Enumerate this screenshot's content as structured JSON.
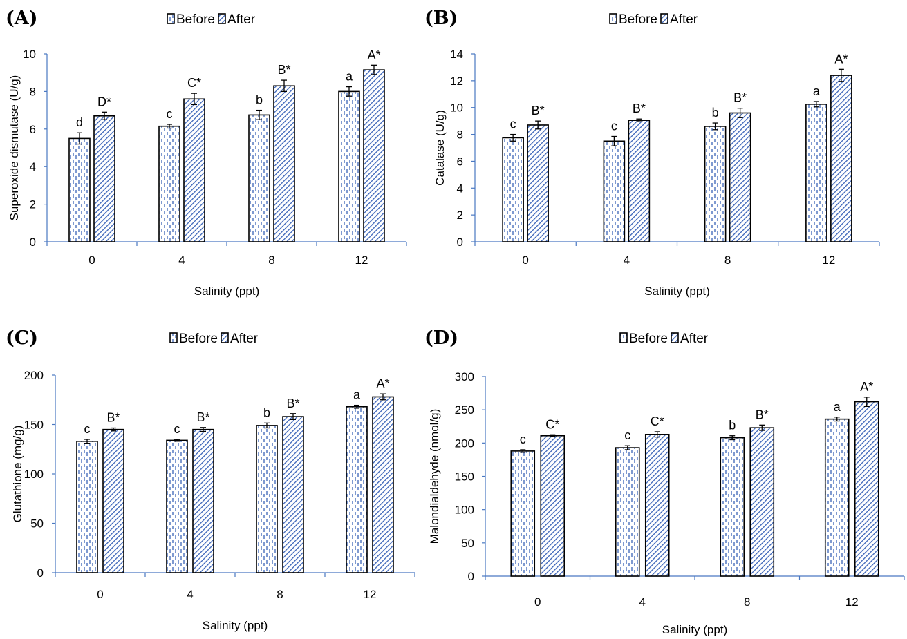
{
  "legend": {
    "before_label": "Before",
    "after_label": "After"
  },
  "colors": {
    "axis": "#4a78c2",
    "pattern": "#3a63b8",
    "outline": "#000000"
  },
  "chart_data": [
    {
      "panel": "(A)",
      "type": "bar",
      "categories": [
        "0",
        "4",
        "8",
        "12"
      ],
      "xlabel": "Salinity (ppt)",
      "ylabel": "Superoxide dismutase  (U/g)",
      "ylim": [
        0,
        10
      ],
      "yticks": [
        0,
        2,
        4,
        6,
        8,
        10
      ],
      "series": [
        {
          "name": "Before",
          "values": [
            5.5,
            6.15,
            6.75,
            8.0
          ],
          "errors": [
            0.3,
            0.1,
            0.25,
            0.25
          ],
          "labels": [
            "d",
            "c",
            "b",
            "a"
          ]
        },
        {
          "name": "After",
          "values": [
            6.7,
            7.6,
            8.3,
            9.15
          ],
          "errors": [
            0.2,
            0.3,
            0.3,
            0.25
          ],
          "labels": [
            "D*",
            "C*",
            "B*",
            "A*"
          ]
        }
      ]
    },
    {
      "panel": "(B)",
      "type": "bar",
      "categories": [
        "0",
        "4",
        "8",
        "12"
      ],
      "xlabel": "Salinity (ppt)",
      "ylabel": "Catalase  (U/g)",
      "ylim": [
        0,
        14
      ],
      "yticks": [
        0,
        2,
        4,
        6,
        8,
        10,
        12,
        14
      ],
      "series": [
        {
          "name": "Before",
          "values": [
            7.75,
            7.5,
            8.6,
            10.25
          ],
          "errors": [
            0.25,
            0.35,
            0.25,
            0.2
          ],
          "labels": [
            "c",
            "c",
            "b",
            "a"
          ]
        },
        {
          "name": "After",
          "values": [
            8.7,
            9.05,
            9.6,
            12.4
          ],
          "errors": [
            0.3,
            0.1,
            0.35,
            0.45
          ],
          "labels": [
            "B*",
            "B*",
            "B*",
            "A*"
          ]
        }
      ]
    },
    {
      "panel": "(C)",
      "type": "bar",
      "categories": [
        "0",
        "4",
        "8",
        "12"
      ],
      "xlabel": "Salinity (ppt)",
      "ylabel": "Glutathione (mg/g)",
      "ylim": [
        0,
        200
      ],
      "yticks": [
        0,
        50,
        100,
        150,
        200
      ],
      "series": [
        {
          "name": "Before",
          "values": [
            133,
            134,
            149,
            168
          ],
          "errors": [
            2,
            1,
            2.5,
            1.5
          ],
          "labels": [
            "c",
            "c",
            "b",
            "a"
          ]
        },
        {
          "name": "After",
          "values": [
            145,
            145,
            158,
            178
          ],
          "errors": [
            1.5,
            2,
            3,
            3
          ],
          "labels": [
            "B*",
            "B*",
            "B*",
            "A*"
          ]
        }
      ]
    },
    {
      "panel": "(D)",
      "type": "bar",
      "categories": [
        "0",
        "4",
        "8",
        "12"
      ],
      "xlabel": "Salinity (ppt)",
      "ylabel": "Malondialdehyde (nmol/g)",
      "ylim": [
        0,
        300
      ],
      "yticks": [
        0,
        50,
        100,
        150,
        200,
        250,
        300
      ],
      "series": [
        {
          "name": "Before",
          "values": [
            188,
            193,
            208,
            236
          ],
          "errors": [
            2,
            3,
            3,
            3
          ],
          "labels": [
            "c",
            "c",
            "b",
            "a"
          ]
        },
        {
          "name": "After",
          "values": [
            211,
            213,
            223,
            262
          ],
          "errors": [
            1.5,
            4,
            4,
            7
          ],
          "labels": [
            "C*",
            "C*",
            "B*",
            "A*"
          ]
        }
      ]
    }
  ]
}
